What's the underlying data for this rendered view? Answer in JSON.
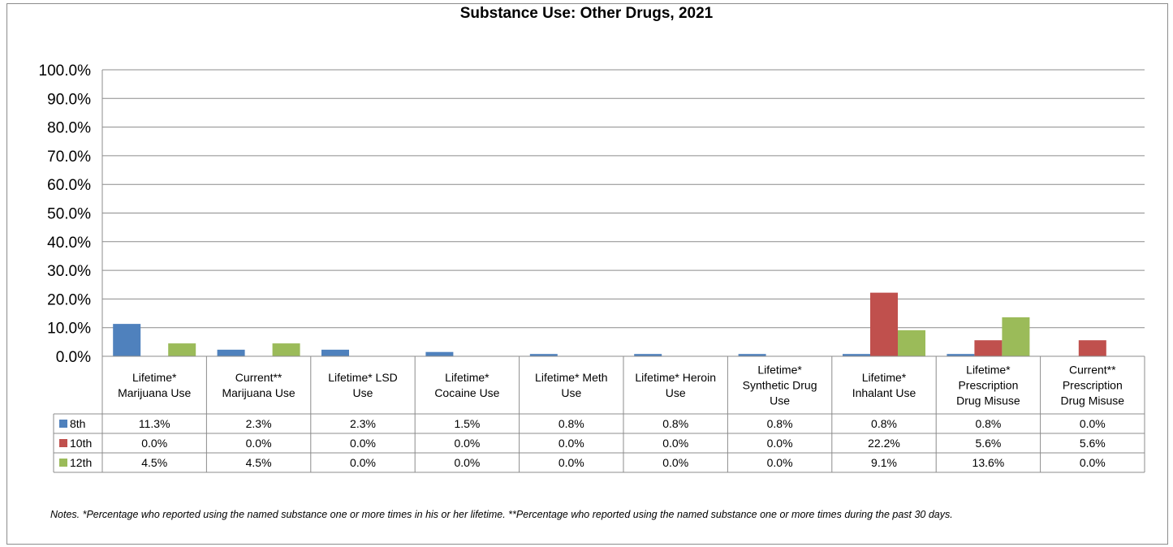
{
  "chart_data": {
    "type": "bar",
    "title": "Substance Use: Other Drugs, 2021",
    "ylim": [
      0,
      100
    ],
    "y_ticks": [
      "0.0%",
      "10.0%",
      "20.0%",
      "30.0%",
      "40.0%",
      "50.0%",
      "60.0%",
      "70.0%",
      "80.0%",
      "90.0%",
      "100.0%"
    ],
    "grid": true,
    "legend": "data-table",
    "categories": [
      [
        "Lifetime*",
        "Marijuana Use"
      ],
      [
        "Current**",
        "Marijuana Use"
      ],
      [
        "Lifetime* LSD",
        "Use"
      ],
      [
        "Lifetime*",
        "Cocaine Use"
      ],
      [
        "Lifetime* Meth",
        "Use"
      ],
      [
        "Lifetime* Heroin",
        "Use"
      ],
      [
        "Lifetime*",
        "Synthetic Drug",
        "Use"
      ],
      [
        "Lifetime*",
        "Inhalant Use"
      ],
      [
        "Lifetime*",
        "Prescription",
        "Drug Misuse"
      ],
      [
        "Current**",
        "Prescription",
        "Drug Misuse"
      ]
    ],
    "series": [
      {
        "name": "8th",
        "color": "#4f81bd",
        "values": [
          11.3,
          2.3,
          2.3,
          1.5,
          0.8,
          0.8,
          0.8,
          0.8,
          0.8,
          0.0
        ],
        "labels": [
          "11.3%",
          "2.3%",
          "2.3%",
          "1.5%",
          "0.8%",
          "0.8%",
          "0.8%",
          "0.8%",
          "0.8%",
          "0.0%"
        ]
      },
      {
        "name": "10th",
        "color": "#c0504d",
        "values": [
          0.0,
          0.0,
          0.0,
          0.0,
          0.0,
          0.0,
          0.0,
          22.2,
          5.6,
          5.6
        ],
        "labels": [
          "0.0%",
          "0.0%",
          "0.0%",
          "0.0%",
          "0.0%",
          "0.0%",
          "0.0%",
          "22.2%",
          "5.6%",
          "5.6%"
        ]
      },
      {
        "name": "12th",
        "color": "#9bbb59",
        "values": [
          4.5,
          4.5,
          0.0,
          0.0,
          0.0,
          0.0,
          0.0,
          9.1,
          13.6,
          0.0
        ],
        "labels": [
          "4.5%",
          "4.5%",
          "0.0%",
          "0.0%",
          "0.0%",
          "0.0%",
          "0.0%",
          "9.1%",
          "13.6%",
          "0.0%"
        ]
      }
    ]
  },
  "notes": "Notes. *Percentage who reported using the named substance one or more times in his or her lifetime. **Percentage who reported using the named substance one or more times during the past 30 days."
}
